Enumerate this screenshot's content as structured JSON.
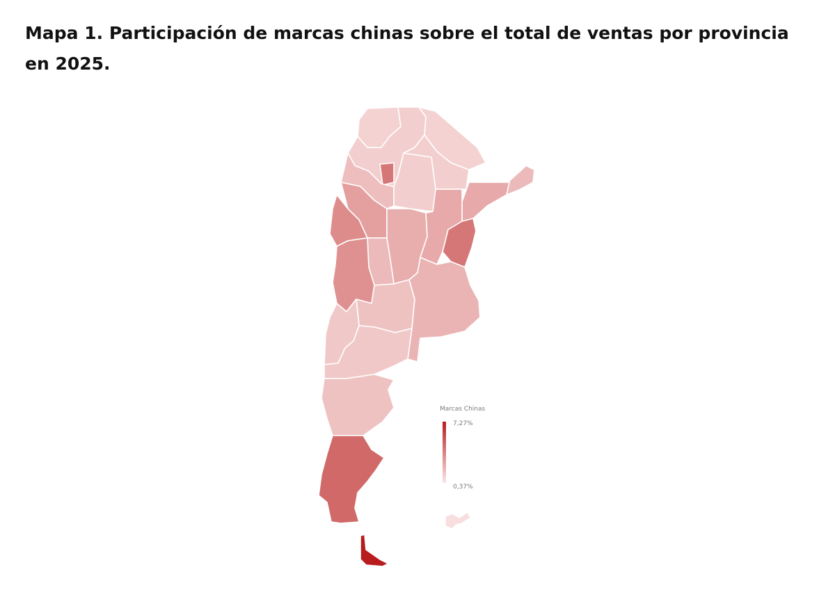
{
  "title": "Mapa 1. Participación de marcas chinas sobre el total de ventas por provincia en 2025.",
  "legend": {
    "title": "Marcas Chinas",
    "max_label": "7,27%",
    "min_label": "0,37%",
    "max_value": 7.27,
    "min_value": 0.37,
    "color_max": "#b81c1c",
    "color_min": "#fbe6e6"
  },
  "provinces": [
    {
      "id": "jujuy",
      "level": 0.1
    },
    {
      "id": "salta",
      "level": 0.12
    },
    {
      "id": "formosa",
      "level": 0.1
    },
    {
      "id": "chaco",
      "level": 0.12
    },
    {
      "id": "misiones",
      "level": 0.22
    },
    {
      "id": "tucuman",
      "level": 0.55
    },
    {
      "id": "catamarca",
      "level": 0.2
    },
    {
      "id": "santiago-del-estero",
      "level": 0.12
    },
    {
      "id": "corrientes",
      "level": 0.3
    },
    {
      "id": "la-rioja",
      "level": 0.35
    },
    {
      "id": "san-juan",
      "level": 0.45
    },
    {
      "id": "cordoba",
      "level": 0.28
    },
    {
      "id": "santa-fe",
      "level": 0.3
    },
    {
      "id": "entre-rios",
      "level": 0.55
    },
    {
      "id": "san-luis",
      "level": 0.22
    },
    {
      "id": "mendoza",
      "level": 0.42
    },
    {
      "id": "la-pampa",
      "level": 0.18
    },
    {
      "id": "buenos-aires",
      "level": 0.25
    },
    {
      "id": "neuquen",
      "level": 0.15
    },
    {
      "id": "rio-negro",
      "level": 0.15
    },
    {
      "id": "chubut",
      "level": 0.18
    },
    {
      "id": "santa-cruz",
      "level": 0.62
    },
    {
      "id": "tierra-del-fuego",
      "level": 1.0
    },
    {
      "id": "malvinas",
      "level": 0.04
    }
  ]
}
